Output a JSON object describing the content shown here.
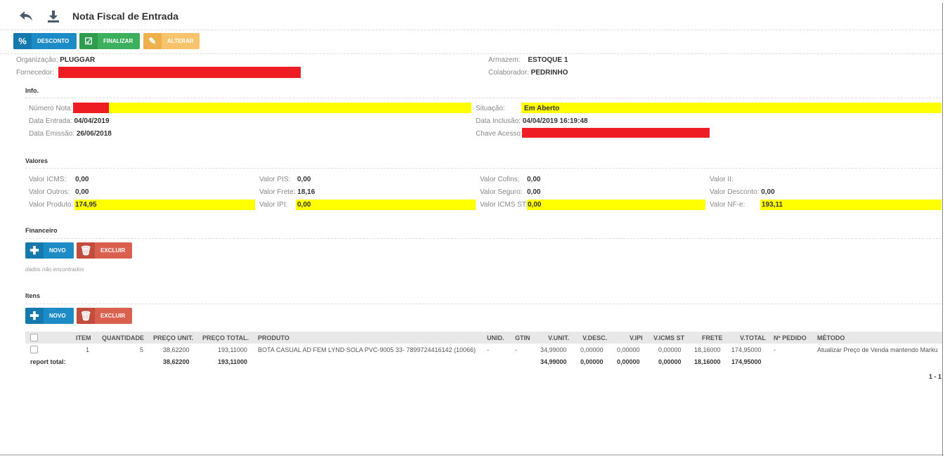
{
  "header": {
    "title": "Nota Fiscal de Entrada",
    "back_icon": "undo-arrow-icon",
    "download_icon": "download-icon"
  },
  "toolbar": {
    "desconto": "DESCONTO",
    "finalizar": "FINALIZAR",
    "alterar": "ALTERAR"
  },
  "summary": {
    "organizacao_label": "Organização:",
    "organizacao": "PLUGGAR",
    "fornecedor_label": "Fornecedor:",
    "armazem_label": "Armazem:",
    "armazem": "ESTOQUE 1",
    "colaborador_label": "Colaborador:",
    "colaborador": "PEDRINHO"
  },
  "info": {
    "title": "Info.",
    "numero_nota_label": "Número Nota:",
    "data_entrada_label": "Data Entrada:",
    "data_entrada": "04/04/2019",
    "data_emissao_label": "Data Emissão:",
    "data_emissao": "26/06/2018",
    "situacao_label": "Situação:",
    "situacao": "Em Aberto",
    "data_inclusao_label": "Data Inclusão:",
    "data_inclusao": "04/04/2019 16:19:48",
    "chave_acesso_label": "Chave Acesso:"
  },
  "valores": {
    "title": "Valores",
    "icms_label": "Valor ICMS:",
    "icms": "0,00",
    "outros_label": "Valor Outros:",
    "outros": "0,00",
    "produto_label": "Valor Produto:",
    "produto": "174,95",
    "pis_label": "Valor PIS:",
    "pis": "0,00",
    "frete_label": "Valor Frete:",
    "frete": "18,16",
    "ipi_label": "Valor IPI:",
    "ipi": "0,00",
    "cofins_label": "Valor Cofins:",
    "cofins": "0,00",
    "seguro_label": "Valor Seguro:",
    "seguro": "0,00",
    "icms_st_label": "Valor ICMS ST:",
    "icms_st": "0,00",
    "ii_label": "Valor II:",
    "desconto_label": "Valor Desconto:",
    "desconto": "0,00",
    "nfe_label": "Valor NF-e:",
    "nfe": "193,11"
  },
  "financeiro": {
    "title": "Financeiro",
    "novo": "NOVO",
    "excluir": "EXCLUIR",
    "empty": "dados não encontrados"
  },
  "itens": {
    "title": "Itens",
    "novo": "NOVO",
    "excluir": "EXCLUIR",
    "columns": [
      "ITEM",
      "QUANTIDADE",
      "PREÇO UNIT.",
      "PREÇO TOTAL.",
      "PRODUTO",
      "UNID.",
      "GTIN",
      "V.UNIT.",
      "V.DESC.",
      "V.IPI",
      "V.ICMS ST",
      "FRETE",
      "V.TOTAL",
      "Nº PEDIDO",
      "MÉTODO"
    ],
    "row": {
      "item": "1",
      "quantidade": "5",
      "preco_unit": "38,62200",
      "preco_total": "193,11000",
      "produto": "BOTA CASUAL AD FEM LYND SOLA PVC-9005 33- 7899724416142 (10066)",
      "unid": "-",
      "gtin": "-",
      "v_unit": "34,99000",
      "v_desc": "0,00000",
      "v_ipi": "0,00000",
      "v_icms_st": "0,00000",
      "frete": "18,16000",
      "v_total": "174,95000",
      "pedido": "-",
      "metodo": "Atualizar Preço de Venda mantendo Marku"
    },
    "total": {
      "label": "report total:",
      "preco_unit": "38,62200",
      "preco_total": "193,11000",
      "v_unit": "34,99000",
      "v_desc": "0,00000",
      "v_ipi": "0,00000",
      "v_icms_st": "0,00000",
      "frete": "18,16000",
      "v_total": "174,95000"
    },
    "pagination": "1 - 1"
  },
  "colors": {
    "blue": "#1d8bc6",
    "green": "#3cb05d",
    "orange": "#f7c36b",
    "red": "#d9604f",
    "redaction": "#ee1d23",
    "highlight": "#ffff00"
  }
}
